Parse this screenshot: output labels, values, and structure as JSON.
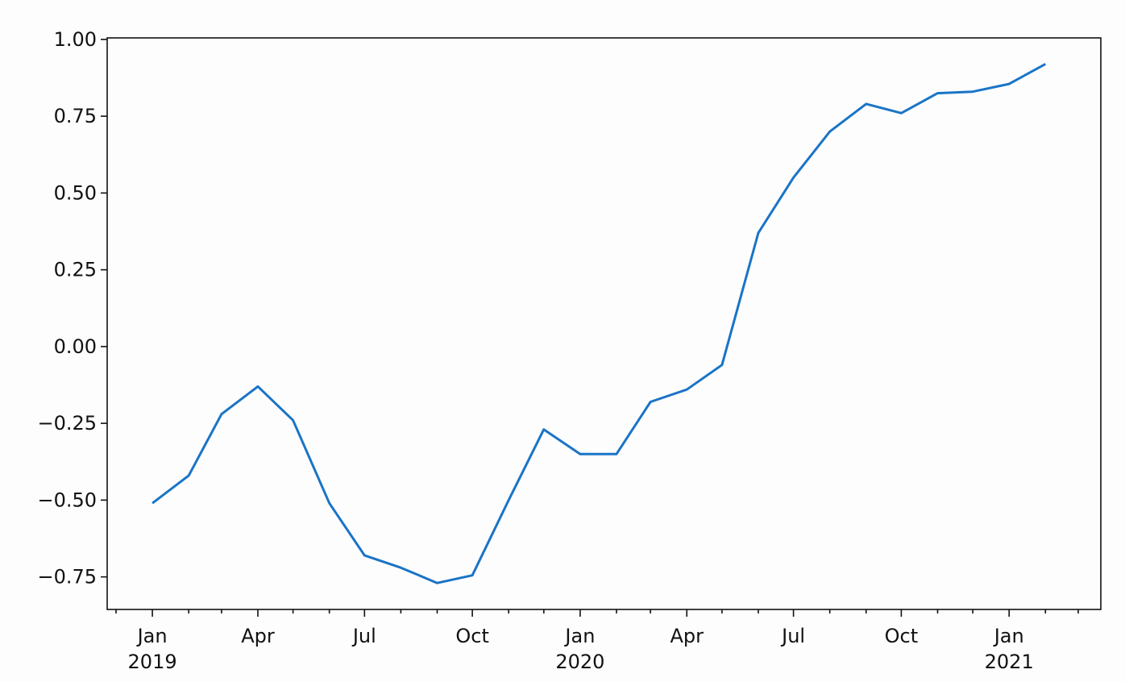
{
  "chart_data": {
    "type": "line",
    "x": [
      "2019-01",
      "2019-02",
      "2019-03",
      "2019-04",
      "2019-05",
      "2019-06",
      "2019-07",
      "2019-08",
      "2019-09",
      "2019-10",
      "2019-11",
      "2019-12",
      "2020-01",
      "2020-02",
      "2020-03",
      "2020-04",
      "2020-05",
      "2020-06",
      "2020-07",
      "2020-08",
      "2020-09",
      "2020-10",
      "2020-11",
      "2020-12",
      "2021-01",
      "2021-02"
    ],
    "series": [
      {
        "color": "#1a74c6",
        "values": [
          -0.51,
          -0.42,
          -0.22,
          -0.13,
          -0.24,
          -0.51,
          -0.68,
          -0.72,
          -0.77,
          -0.745,
          -0.5,
          -0.27,
          -0.35,
          -0.35,
          -0.18,
          -0.14,
          -0.06,
          0.37,
          0.55,
          0.7,
          0.79,
          0.76,
          0.825,
          0.83,
          0.855,
          0.92
        ]
      }
    ],
    "xlim": [
      "2018-12",
      "2021-03"
    ],
    "xticks": [
      {
        "value": "2019-01",
        "label": "Jan",
        "year": "2019"
      },
      {
        "value": "2019-04",
        "label": "Apr"
      },
      {
        "value": "2019-07",
        "label": "Jul"
      },
      {
        "value": "2019-10",
        "label": "Oct"
      },
      {
        "value": "2020-01",
        "label": "Jan",
        "year": "2020"
      },
      {
        "value": "2020-04",
        "label": "Apr"
      },
      {
        "value": "2020-07",
        "label": "Jul"
      },
      {
        "value": "2020-10",
        "label": "Oct"
      },
      {
        "value": "2021-01",
        "label": "Jan",
        "year": "2021"
      }
    ],
    "xminor_ticks": [
      "2018-12",
      "2019-02",
      "2019-03",
      "2019-05",
      "2019-06",
      "2019-08",
      "2019-09",
      "2019-11",
      "2019-12",
      "2020-02",
      "2020-03",
      "2020-05",
      "2020-06",
      "2020-08",
      "2020-09",
      "2020-11",
      "2020-12",
      "2021-02",
      "2021-03"
    ],
    "ylim": [
      -0.856,
      1.005
    ],
    "yticks": [
      {
        "value": -0.75,
        "label": "−0.75"
      },
      {
        "value": -0.5,
        "label": "−0.50"
      },
      {
        "value": -0.25,
        "label": "−0.25"
      },
      {
        "value": 0,
        "label": "0.00"
      },
      {
        "value": 0.25,
        "label": "0.25"
      },
      {
        "value": 0.5,
        "label": "0.50"
      },
      {
        "value": 0.75,
        "label": "0.75"
      },
      {
        "value": 1,
        "label": "1.00"
      }
    ],
    "grid": false
  }
}
